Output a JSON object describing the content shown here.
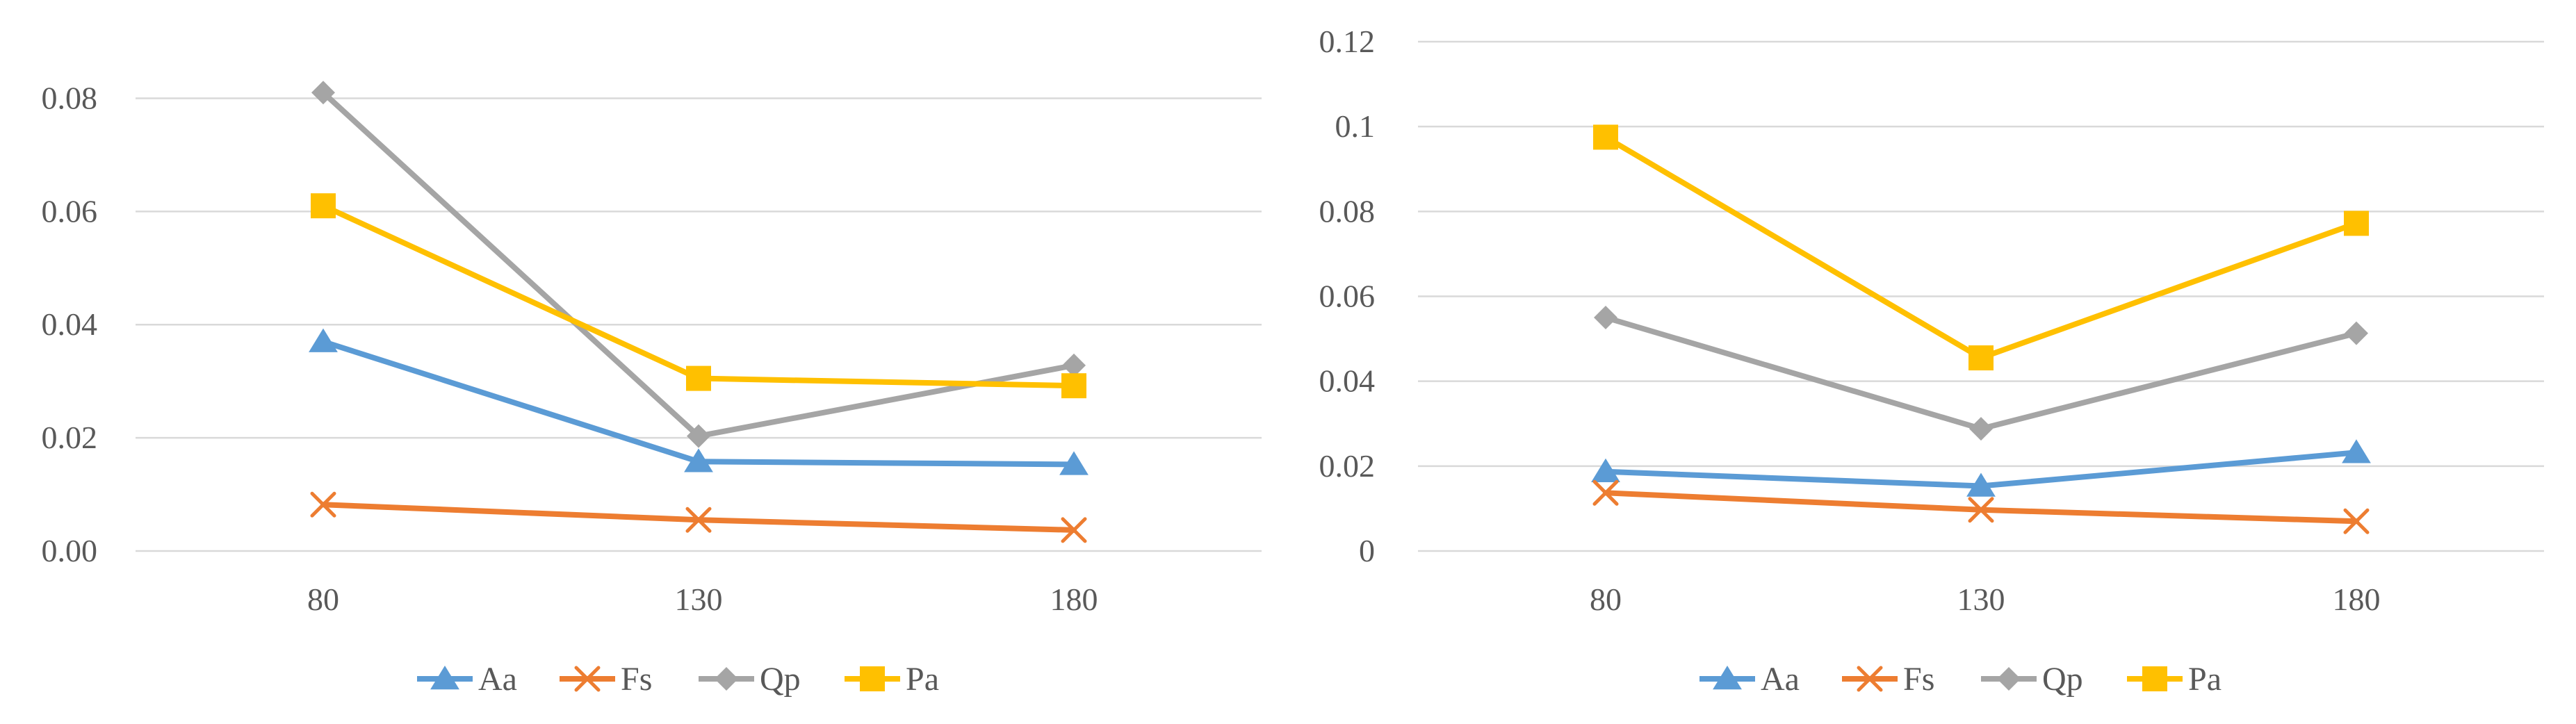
{
  "chart_data": [
    {
      "type": "line",
      "categories": [
        "80",
        "130",
        "180"
      ],
      "ylim": [
        0,
        0.09
      ],
      "yticks": [
        "0.00",
        "0.02",
        "0.04",
        "0.06",
        "0.08"
      ],
      "ytick_values": [
        0,
        0.02,
        0.04,
        0.06,
        0.08
      ],
      "grid": true,
      "legend_position": "bottom",
      "series": [
        {
          "name": "Aa",
          "color": "#5B9BD5",
          "marker": "triangle",
          "values": [
            0.037,
            0.0158,
            0.0153
          ]
        },
        {
          "name": "Fs",
          "color": "#ED7D31",
          "marker": "x",
          "values": [
            0.0082,
            0.0055,
            0.0037
          ]
        },
        {
          "name": "Qp",
          "color": "#A5A5A5",
          "marker": "diamond",
          "values": [
            0.081,
            0.0203,
            0.0328
          ]
        },
        {
          "name": "Pa",
          "color": "#FFC000",
          "marker": "square",
          "values": [
            0.061,
            0.0305,
            0.0292
          ]
        }
      ]
    },
    {
      "type": "line",
      "categories": [
        "80",
        "130",
        "180"
      ],
      "ylim": [
        0,
        0.12
      ],
      "yticks": [
        "0",
        "0.02",
        "0.04",
        "0.06",
        "0.08",
        "0.1",
        "0.12"
      ],
      "ytick_values": [
        0,
        0.02,
        0.04,
        0.06,
        0.08,
        0.1,
        0.12
      ],
      "grid": true,
      "legend_position": "bottom",
      "series": [
        {
          "name": "Aa",
          "color": "#5B9BD5",
          "marker": "triangle",
          "values": [
            0.0187,
            0.0153,
            0.0232
          ]
        },
        {
          "name": "Fs",
          "color": "#ED7D31",
          "marker": "x",
          "values": [
            0.0137,
            0.0097,
            0.007
          ]
        },
        {
          "name": "Qp",
          "color": "#A5A5A5",
          "marker": "diamond",
          "values": [
            0.055,
            0.0288,
            0.0513
          ]
        },
        {
          "name": "Pa",
          "color": "#FFC000",
          "marker": "square",
          "values": [
            0.0975,
            0.0455,
            0.0772
          ]
        }
      ]
    }
  ]
}
